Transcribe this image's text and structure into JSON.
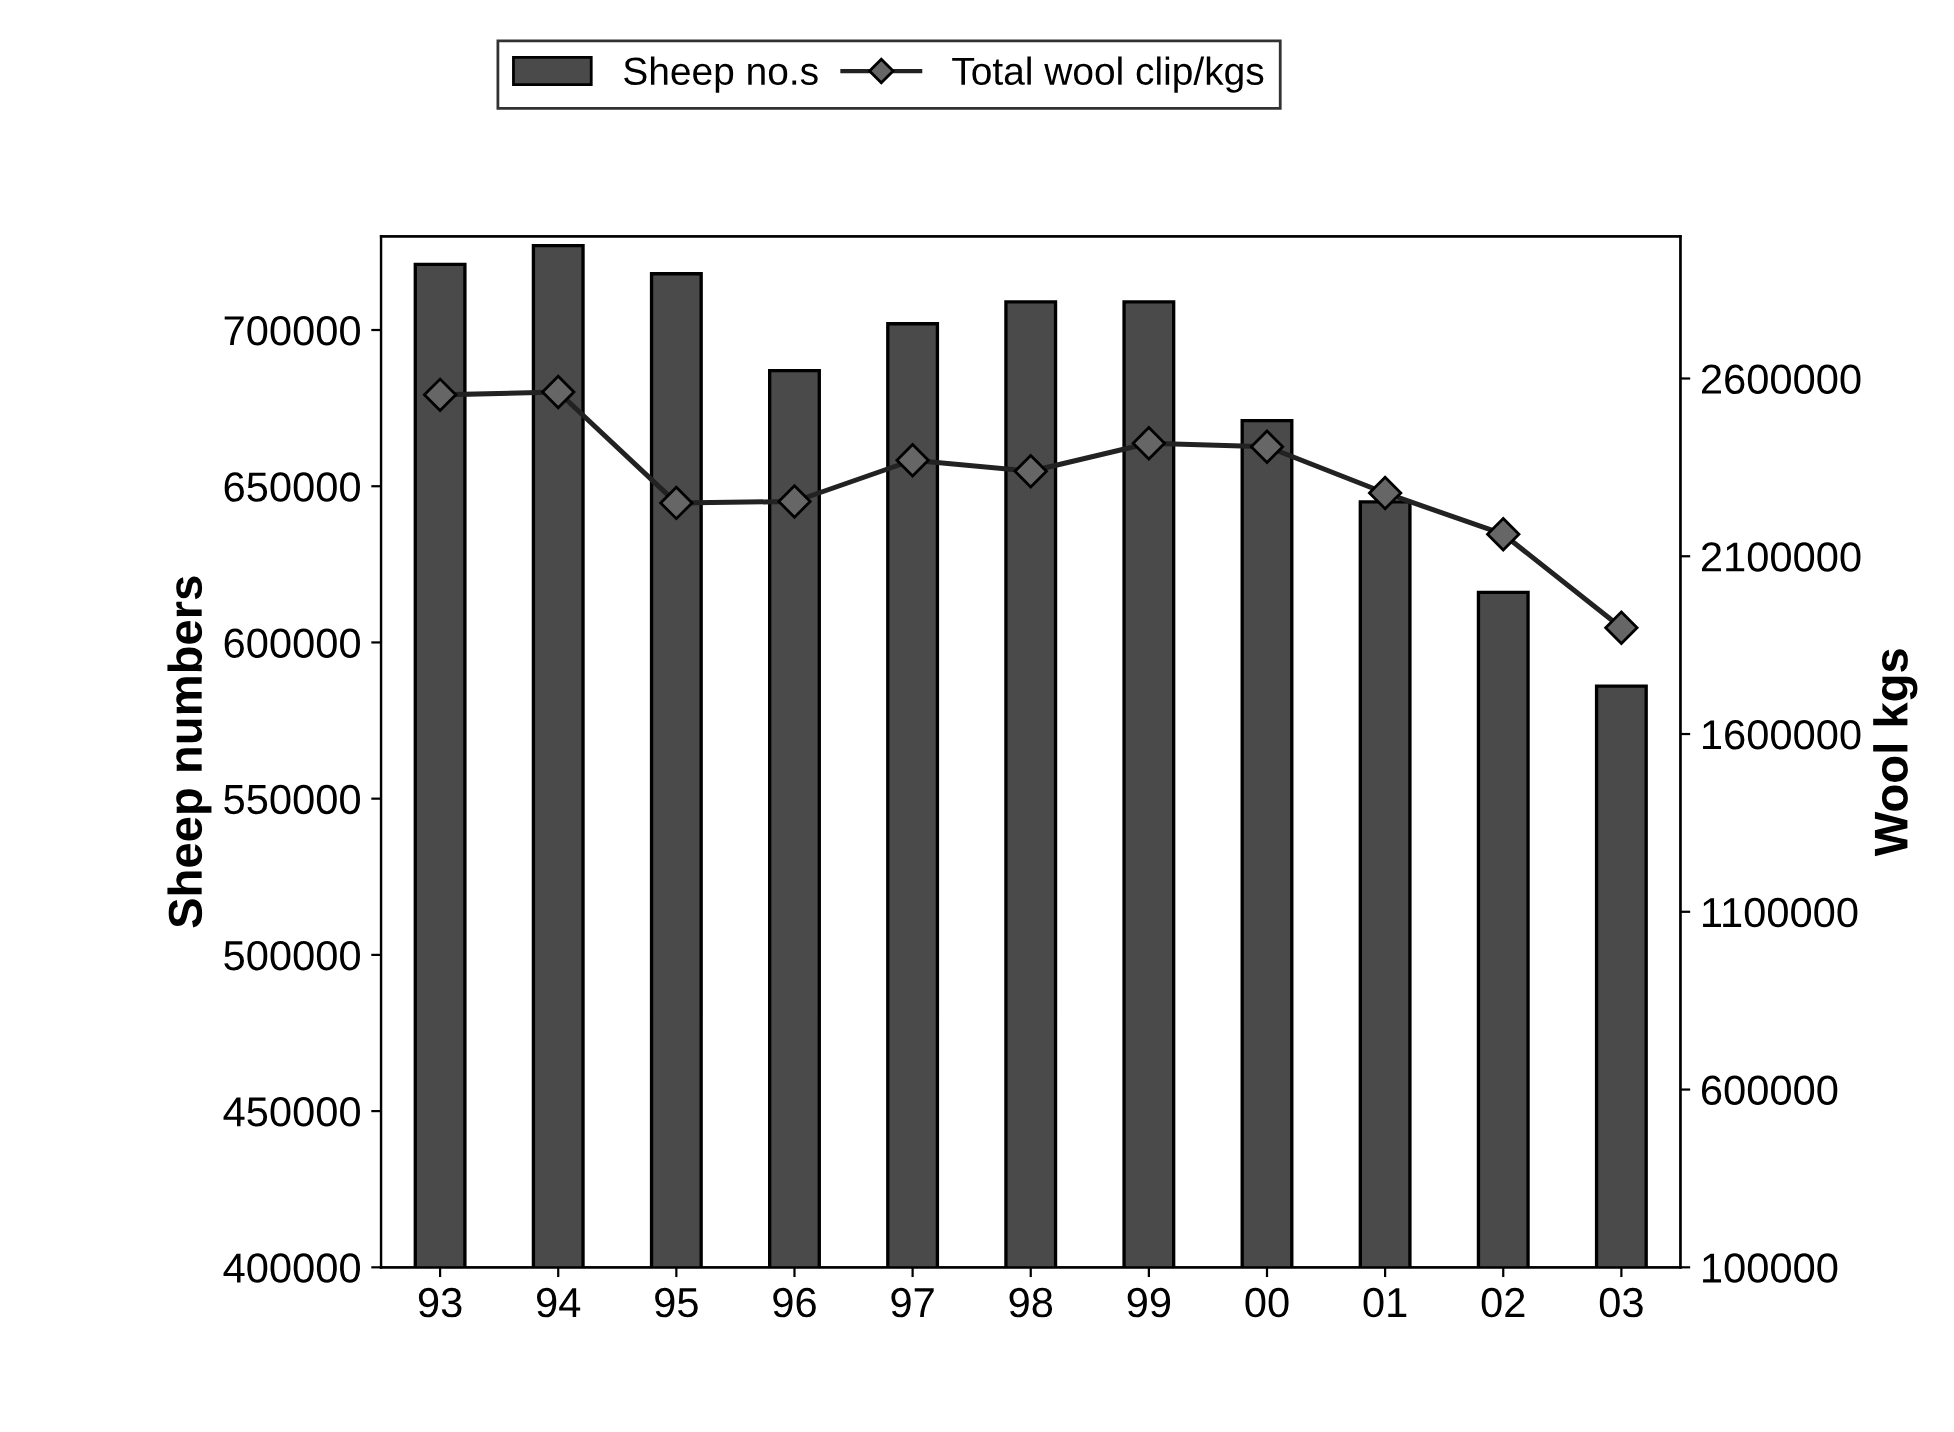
{
  "chart_data": {
    "type": "bar",
    "ylabel": "Sheep numbers",
    "y2label": "Wool kgs",
    "categories": [
      "93",
      "94",
      "95",
      "96",
      "97",
      "98",
      "99",
      "00",
      "01",
      "02",
      "03"
    ],
    "series": [
      {
        "name": "Sheep no.s",
        "color": "#4a4a4a",
        "values": [
          721000,
          727000,
          718000,
          687000,
          702000,
          709000,
          709000,
          671000,
          645000,
          616000,
          586000
        ]
      },
      {
        "name": "Total wool clip/kgs",
        "type": "line",
        "axis": "y2",
        "color": "#222222",
        "marker": "diamond",
        "values": [
          2554000,
          2562000,
          2250000,
          2254000,
          2370000,
          2339000,
          2418000,
          2408000,
          2278000,
          2162000,
          1899000
        ]
      }
    ],
    "ylim": [
      400000,
      730000
    ],
    "yticks": [
      400000,
      450000,
      500000,
      550000,
      600000,
      650000,
      700000
    ],
    "y2lim": [
      100000,
      3000000
    ],
    "y2ticks": [
      100000,
      600000,
      1100000,
      1600000,
      2100000,
      2600000
    ],
    "legend": "top",
    "grid": false
  }
}
